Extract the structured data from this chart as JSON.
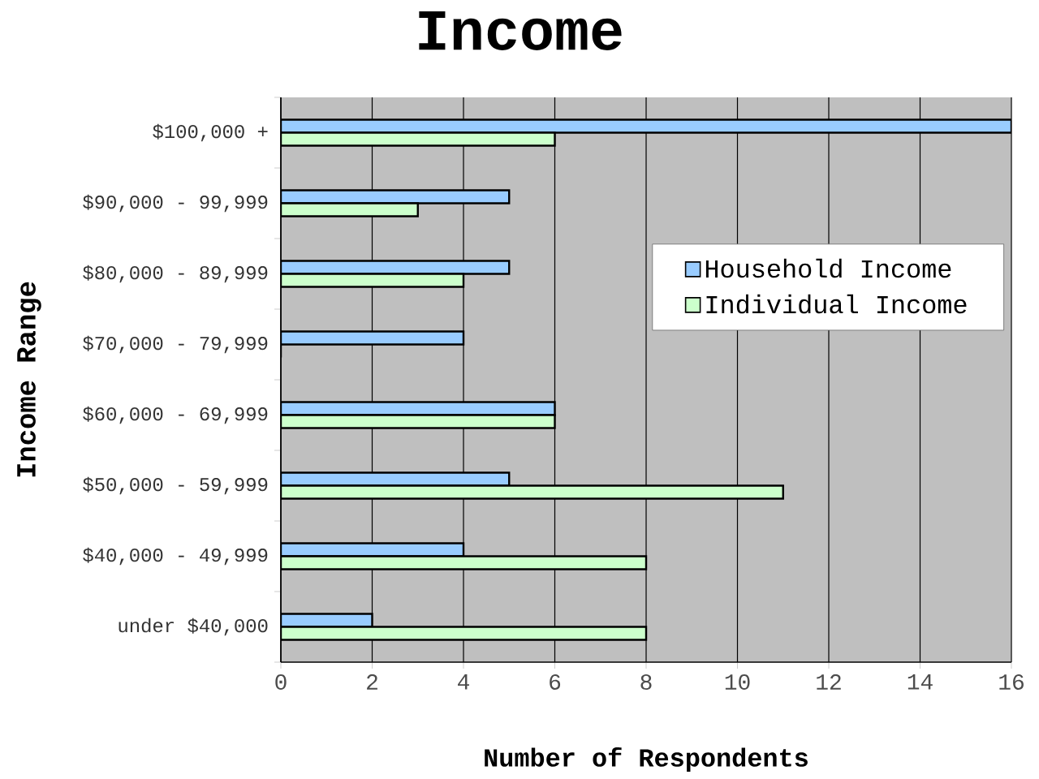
{
  "chart_data": {
    "type": "bar",
    "orientation": "horizontal",
    "title": "Income",
    "xlabel": "Number of Respondents",
    "ylabel": "Income Range",
    "categories": [
      "$100,000 +",
      "$90,000 - 99,999",
      "$80,000 - 89,999",
      "$70,000 - 79,999",
      "$60,000 - 69,999",
      "$50,000 - 59,999",
      "$40,000 - 49,999",
      "under $40,000"
    ],
    "series": [
      {
        "name": "Household Income",
        "color": "#99ccff",
        "values": [
          16,
          5,
          5,
          4,
          6,
          5,
          4,
          2
        ]
      },
      {
        "name": "Individual Income",
        "color": "#ccffcc",
        "values": [
          6,
          3,
          4,
          0,
          6,
          11,
          8,
          8
        ]
      }
    ],
    "xlim": [
      0,
      16
    ],
    "xticks": [
      0,
      2,
      4,
      6,
      8,
      10,
      12,
      14,
      16
    ],
    "grid": "x",
    "legend": "right"
  }
}
